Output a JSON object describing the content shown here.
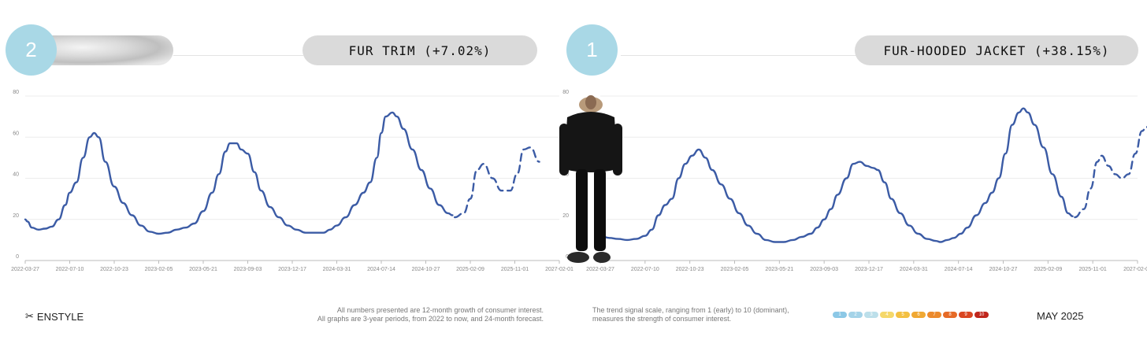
{
  "panels": [
    {
      "rank": "2",
      "title": "FUR TRIM (+7.02%)",
      "swatch_icon": "fur-texture-image"
    },
    {
      "rank": "1",
      "title": "FUR-HOODED JACKET (+38.15%)",
      "image_icon": "model-in-fur-hooded-jacket-image"
    }
  ],
  "chart_data": [
    {
      "type": "line",
      "title": "",
      "xlabel": "",
      "ylabel": "",
      "ylim": [
        0,
        80
      ],
      "yticks": [
        "0",
        "20",
        "40",
        "60",
        "80"
      ],
      "grid": true,
      "x_ticks": [
        "2022-03-27",
        "2022-07-10",
        "2022-10-23",
        "2023-02-05",
        "2023-05-21",
        "2023-09-03",
        "2023-12-17",
        "2024-03-31",
        "2024-07-14",
        "2024-10-27",
        "2025-02-09",
        "2025-11-01",
        "2027-02-01"
      ],
      "series": [
        {
          "style": "solid",
          "color": "#3b5ba5",
          "points": [
            [
              0,
              20
            ],
            [
              0.05,
              19
            ],
            [
              0.15,
              16
            ],
            [
              0.3,
              15
            ],
            [
              0.45,
              15.5
            ],
            [
              0.6,
              16.5
            ],
            [
              0.75,
              20
            ],
            [
              0.9,
              27
            ],
            [
              1.0,
              33
            ],
            [
              1.15,
              38
            ],
            [
              1.3,
              50
            ],
            [
              1.45,
              60
            ],
            [
              1.55,
              62
            ],
            [
              1.65,
              60
            ],
            [
              1.8,
              48
            ],
            [
              2.0,
              36
            ],
            [
              2.2,
              28
            ],
            [
              2.4,
              22
            ],
            [
              2.6,
              17
            ],
            [
              2.8,
              14
            ],
            [
              3.0,
              13
            ],
            [
              3.2,
              13.5
            ],
            [
              3.4,
              15
            ],
            [
              3.6,
              16
            ],
            [
              3.8,
              18
            ],
            [
              4.0,
              24
            ],
            [
              4.2,
              33
            ],
            [
              4.35,
              42
            ],
            [
              4.5,
              53
            ],
            [
              4.6,
              57
            ],
            [
              4.75,
              57
            ],
            [
              4.85,
              54
            ],
            [
              5.0,
              52
            ],
            [
              5.15,
              43
            ],
            [
              5.3,
              34
            ],
            [
              5.5,
              26
            ],
            [
              5.7,
              21
            ],
            [
              5.9,
              17
            ],
            [
              6.1,
              15
            ],
            [
              6.3,
              13.5
            ],
            [
              6.5,
              13.5
            ],
            [
              6.7,
              13.5
            ],
            [
              6.85,
              15
            ],
            [
              7.0,
              17
            ],
            [
              7.2,
              21
            ],
            [
              7.4,
              27
            ],
            [
              7.6,
              33
            ],
            [
              7.75,
              38
            ],
            [
              7.9,
              50
            ],
            [
              8.0,
              62
            ],
            [
              8.1,
              70
            ],
            [
              8.25,
              72
            ],
            [
              8.35,
              70
            ],
            [
              8.5,
              64
            ],
            [
              8.7,
              54
            ],
            [
              8.9,
              44
            ],
            [
              9.1,
              35
            ],
            [
              9.3,
              27
            ],
            [
              9.5,
              23
            ],
            [
              9.6,
              22
            ]
          ]
        },
        {
          "style": "dashed",
          "color": "#3b5ba5",
          "points": [
            [
              9.65,
              21
            ],
            [
              9.85,
              23
            ],
            [
              10.0,
              30
            ],
            [
              10.15,
              44
            ],
            [
              10.3,
              47
            ],
            [
              10.5,
              40
            ],
            [
              10.7,
              34
            ],
            [
              10.9,
              34
            ],
            [
              11.05,
              42
            ],
            [
              11.2,
              54
            ],
            [
              11.35,
              55
            ],
            [
              11.55,
              48
            ]
          ]
        }
      ]
    },
    {
      "type": "line",
      "title": "",
      "xlabel": "",
      "ylabel": "",
      "ylim": [
        0,
        80
      ],
      "yticks": [
        "0",
        "20",
        "40",
        "60",
        "80"
      ],
      "grid": true,
      "x_ticks": [
        "2022-03-27",
        "2022-07-10",
        "2022-10-23",
        "2023-02-05",
        "2023-05-21",
        "2023-09-03",
        "2023-12-17",
        "2024-03-31",
        "2024-07-14",
        "2024-10-27",
        "2025-02-09",
        "2025-11-01",
        "2027-02-01"
      ],
      "series": [
        {
          "style": "solid",
          "color": "#3b5ba5",
          "points": [
            [
              0,
              12
            ],
            [
              0.2,
              11
            ],
            [
              0.4,
              10.5
            ],
            [
              0.6,
              10
            ],
            [
              0.8,
              10.5
            ],
            [
              1.0,
              12
            ],
            [
              1.15,
              15
            ],
            [
              1.3,
              22
            ],
            [
              1.45,
              27
            ],
            [
              1.6,
              30
            ],
            [
              1.75,
              40
            ],
            [
              1.9,
              47
            ],
            [
              2.05,
              51
            ],
            [
              2.2,
              54
            ],
            [
              2.35,
              50
            ],
            [
              2.5,
              44
            ],
            [
              2.7,
              37
            ],
            [
              2.9,
              30
            ],
            [
              3.1,
              23
            ],
            [
              3.3,
              17
            ],
            [
              3.5,
              13
            ],
            [
              3.7,
              10
            ],
            [
              3.9,
              9
            ],
            [
              4.1,
              9
            ],
            [
              4.3,
              10
            ],
            [
              4.5,
              11.5
            ],
            [
              4.7,
              13
            ],
            [
              4.85,
              16
            ],
            [
              5.0,
              20
            ],
            [
              5.15,
              25
            ],
            [
              5.3,
              32
            ],
            [
              5.5,
              40
            ],
            [
              5.65,
              47
            ],
            [
              5.8,
              48
            ],
            [
              5.95,
              46
            ],
            [
              6.1,
              45
            ],
            [
              6.2,
              44
            ],
            [
              6.35,
              38
            ],
            [
              6.5,
              30
            ],
            [
              6.7,
              23
            ],
            [
              6.9,
              17
            ],
            [
              7.1,
              13
            ],
            [
              7.3,
              10.5
            ],
            [
              7.5,
              9.5
            ],
            [
              7.6,
              9
            ],
            [
              7.75,
              10
            ],
            [
              7.9,
              11
            ],
            [
              8.05,
              13
            ],
            [
              8.2,
              16
            ],
            [
              8.4,
              22
            ],
            [
              8.6,
              28
            ],
            [
              8.75,
              33
            ],
            [
              8.9,
              40
            ],
            [
              9.05,
              52
            ],
            [
              9.2,
              66
            ],
            [
              9.35,
              72
            ],
            [
              9.45,
              74
            ],
            [
              9.55,
              72
            ],
            [
              9.7,
              66
            ],
            [
              9.9,
              55
            ],
            [
              10.1,
              42
            ],
            [
              10.3,
              31
            ],
            [
              10.45,
              23
            ],
            [
              10.55,
              21.5
            ]
          ]
        },
        {
          "style": "dashed",
          "color": "#3b5ba5",
          "points": [
            [
              10.6,
              21
            ],
            [
              10.8,
              25
            ],
            [
              10.95,
              35
            ],
            [
              11.1,
              48
            ],
            [
              11.2,
              51
            ],
            [
              11.35,
              46
            ],
            [
              11.5,
              42
            ],
            [
              11.65,
              40
            ],
            [
              11.8,
              42
            ],
            [
              11.95,
              52
            ],
            [
              12.1,
              63
            ],
            [
              12.2,
              65
            ],
            [
              12.35,
              58
            ]
          ]
        }
      ]
    }
  ],
  "footer": {
    "brand": "ENSTYLE",
    "brand_icon": "scissors-icon",
    "note_left_1": "All numbers presented are 12-month growth of consumer interest.",
    "note_left_2": "All graphs are 3-year periods, from 2022 to now, and 24-month forecast.",
    "note_right_1": "The trend signal scale, ranging from 1 (early) to 10 (dominant),",
    "note_right_2": "measures the strength of consumer interest.",
    "scale": [
      {
        "label": "1",
        "color": "#8cc8e6"
      },
      {
        "label": "2",
        "color": "#a4d3e8"
      },
      {
        "label": "3",
        "color": "#bcdfea"
      },
      {
        "label": "4",
        "color": "#f5d86a"
      },
      {
        "label": "5",
        "color": "#f3c042"
      },
      {
        "label": "6",
        "color": "#f0a833"
      },
      {
        "label": "7",
        "color": "#ec8a2c"
      },
      {
        "label": "8",
        "color": "#e66a26"
      },
      {
        "label": "9",
        "color": "#d94622"
      },
      {
        "label": "10",
        "color": "#c0261c"
      }
    ],
    "date": "MAY 2025"
  }
}
